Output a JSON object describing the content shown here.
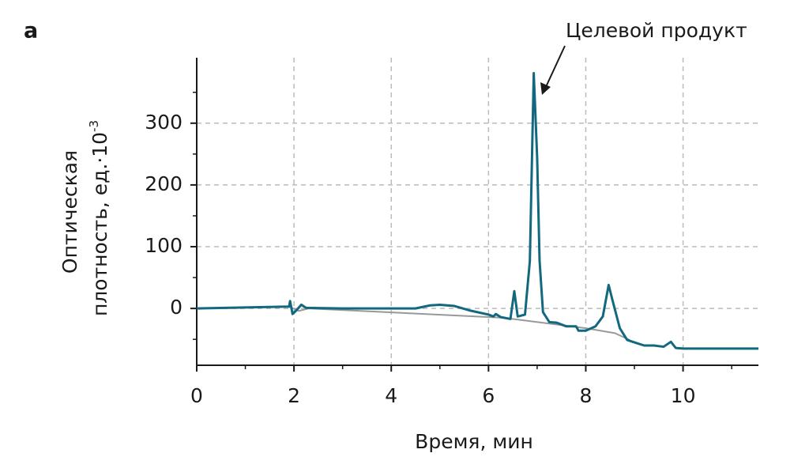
{
  "chart_data": {
    "type": "line",
    "panel_label": "a",
    "xlabel": "Время, мин",
    "ylabel": {
      "line1": "Оптическая",
      "line2": "плотность, ед.·10",
      "exponent": "-3"
    },
    "annotation": "Целевой продукт",
    "xlim": [
      0,
      11.55
    ],
    "ylim": [
      -92,
      406
    ],
    "xticks": [
      0,
      2,
      4,
      6,
      8,
      10
    ],
    "yticks": [
      0,
      100,
      200,
      300
    ],
    "xminorticks": [
      1,
      3,
      5,
      7,
      9,
      11
    ],
    "yminorticks": [
      -50,
      50,
      150,
      250,
      350
    ],
    "grid": true,
    "series": [
      {
        "color": "#999999",
        "x": [
          1.9,
          2.1,
          2.3,
          6.3,
          8.0,
          8.6,
          8.9
        ],
        "values": [
          3,
          -4,
          0,
          -15,
          -32,
          -40,
          -51
        ]
      },
      {
        "color": "#12687f",
        "x": [
          0,
          1.9,
          1.92,
          1.97,
          2.05,
          2.15,
          2.25,
          3,
          4.5,
          4.8,
          5.0,
          5.3,
          5.6,
          6.0,
          6.1,
          6.15,
          6.25,
          6.45,
          6.53,
          6.6,
          6.75,
          6.85,
          6.93,
          7.0,
          7.05,
          7.12,
          7.25,
          7.4,
          7.6,
          7.8,
          7.85,
          8.0,
          8.2,
          8.35,
          8.47,
          8.55,
          8.7,
          8.85,
          9.0,
          9.2,
          9.4,
          9.6,
          9.75,
          9.85,
          10.0,
          11.55
        ],
        "values": [
          0,
          3,
          12,
          -9,
          -3,
          6,
          1,
          0,
          0,
          5,
          6,
          4,
          -3,
          -10,
          -13,
          -9,
          -14,
          -17,
          28,
          -13,
          -10,
          77,
          381,
          244,
          77,
          -6,
          -22,
          -23,
          -29,
          -29,
          -36,
          -36,
          -29,
          -13,
          38,
          13,
          -32,
          -51,
          -55,
          -60,
          -60,
          -62,
          -54,
          -64,
          -65,
          -65
        ]
      }
    ]
  }
}
